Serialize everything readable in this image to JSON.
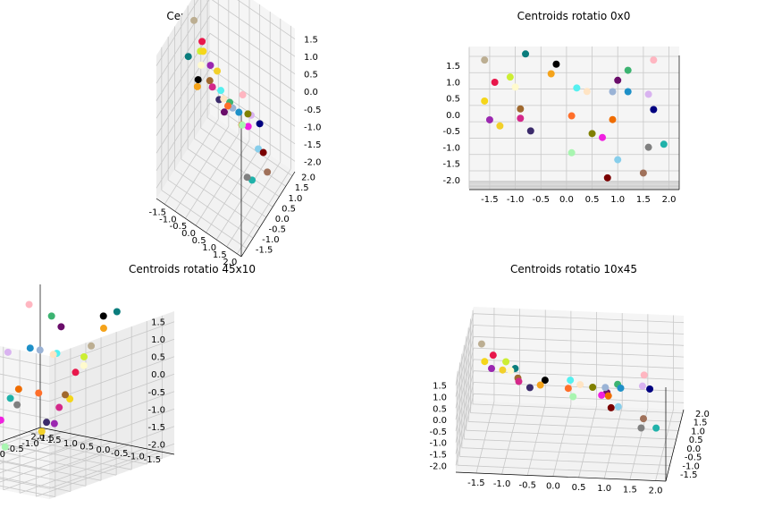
{
  "panels": [
    {
      "title": "Centroids",
      "view": "persp"
    },
    {
      "title": "Centroids rotatio 0x0",
      "view": "front"
    },
    {
      "title": "Centroids rotatio 45x10",
      "view": "side"
    },
    {
      "title": "Centroids rotatio 10x45",
      "view": "steep"
    }
  ],
  "chart_data": {
    "type": "scatter",
    "dimensions": 3,
    "x_ticks": [
      "-1.5",
      "-1.0",
      "-0.5",
      "0.0",
      "0.5",
      "1.0",
      "1.5",
      "2.0"
    ],
    "y_ticks": [
      "-1.5",
      "-1.0",
      "-0.5",
      "0.0",
      "0.5",
      "1.0",
      "1.5",
      "2.0"
    ],
    "z_ticks": [
      "-2.0",
      "-1.5",
      "-1.0",
      "-0.5",
      "0.0",
      "0.5",
      "1.0",
      "1.5"
    ],
    "xlim": [
      -1.9,
      2.2
    ],
    "ylim": [
      -1.9,
      2.2
    ],
    "zlim": [
      -2.3,
      1.8
    ],
    "grid": true,
    "points": [
      {
        "x": -0.8,
        "y": -1.2,
        "z": 1.8,
        "color": "#0a7d7d"
      },
      {
        "x": -0.2,
        "y": -1.4,
        "z": 1.5,
        "color": "#000000"
      },
      {
        "x": -0.3,
        "y": -1.3,
        "z": 1.2,
        "color": "#f5a31a"
      },
      {
        "x": 1.7,
        "y": -1.0,
        "z": 1.6,
        "color": "#ffb6c1"
      },
      {
        "x": 1.2,
        "y": -1.2,
        "z": 1.3,
        "color": "#3cb371"
      },
      {
        "x": 1.0,
        "y": -1.3,
        "z": 1.0,
        "color": "#6a0d6a"
      },
      {
        "x": -1.6,
        "y": 0.5,
        "z": 1.5,
        "color": "#bcae92"
      },
      {
        "x": -1.1,
        "y": 0.2,
        "z": 1.0,
        "color": "#ccee33"
      },
      {
        "x": -1.4,
        "y": 0.8,
        "z": 0.8,
        "color": "#e8174b"
      },
      {
        "x": -1.0,
        "y": 0.1,
        "z": 0.7,
        "color": "#fffacd"
      },
      {
        "x": -1.6,
        "y": 1.2,
        "z": 0.2,
        "color": "#f5d61a"
      },
      {
        "x": -0.9,
        "y": 0.6,
        "z": 0.0,
        "color": "#a0692f"
      },
      {
        "x": -0.9,
        "y": 0.8,
        "z": -0.3,
        "color": "#d4288a"
      },
      {
        "x": -1.5,
        "y": 1.6,
        "z": -0.4,
        "color": "#9b27b0"
      },
      {
        "x": -1.3,
        "y": 1.8,
        "z": -0.6,
        "color": "#f2d02a"
      },
      {
        "x": -0.7,
        "y": 1.0,
        "z": -0.7,
        "color": "#3b2b6b"
      },
      {
        "x": 0.2,
        "y": -0.3,
        "z": 0.7,
        "color": "#55f0f0"
      },
      {
        "x": 0.4,
        "y": -0.4,
        "z": 0.6,
        "color": "#ffe4c4"
      },
      {
        "x": 0.9,
        "y": -0.5,
        "z": 0.6,
        "color": "#9ab3d6"
      },
      {
        "x": 1.2,
        "y": -0.5,
        "z": 0.6,
        "color": "#1e90c8"
      },
      {
        "x": 1.6,
        "y": -0.2,
        "z": 0.5,
        "color": "#d9b3f0"
      },
      {
        "x": 0.1,
        "y": 0.4,
        "z": -0.2,
        "color": "#ff6f2a"
      },
      {
        "x": 1.7,
        "y": 0.3,
        "z": 0.0,
        "color": "#000080"
      },
      {
        "x": 0.9,
        "y": 0.2,
        "z": -0.3,
        "color": "#ef6c00"
      },
      {
        "x": 0.5,
        "y": 1.3,
        "z": -0.8,
        "color": "#808000"
      },
      {
        "x": 0.7,
        "y": 1.0,
        "z": -0.9,
        "color": "#f020e0"
      },
      {
        "x": 1.9,
        "y": -0.6,
        "z": -1.0,
        "color": "#20b2aa"
      },
      {
        "x": 1.6,
        "y": -0.5,
        "z": -1.1,
        "color": "#808080"
      },
      {
        "x": 0.1,
        "y": 1.5,
        "z": -1.4,
        "color": "#a8f5b0"
      },
      {
        "x": 1.0,
        "y": 1.3,
        "z": -1.6,
        "color": "#87ceeb"
      },
      {
        "x": 1.5,
        "y": 1.2,
        "z": -2.0,
        "color": "#a0715a"
      },
      {
        "x": 0.8,
        "y": 2.0,
        "z": -2.2,
        "color": "#7a0000"
      }
    ]
  }
}
